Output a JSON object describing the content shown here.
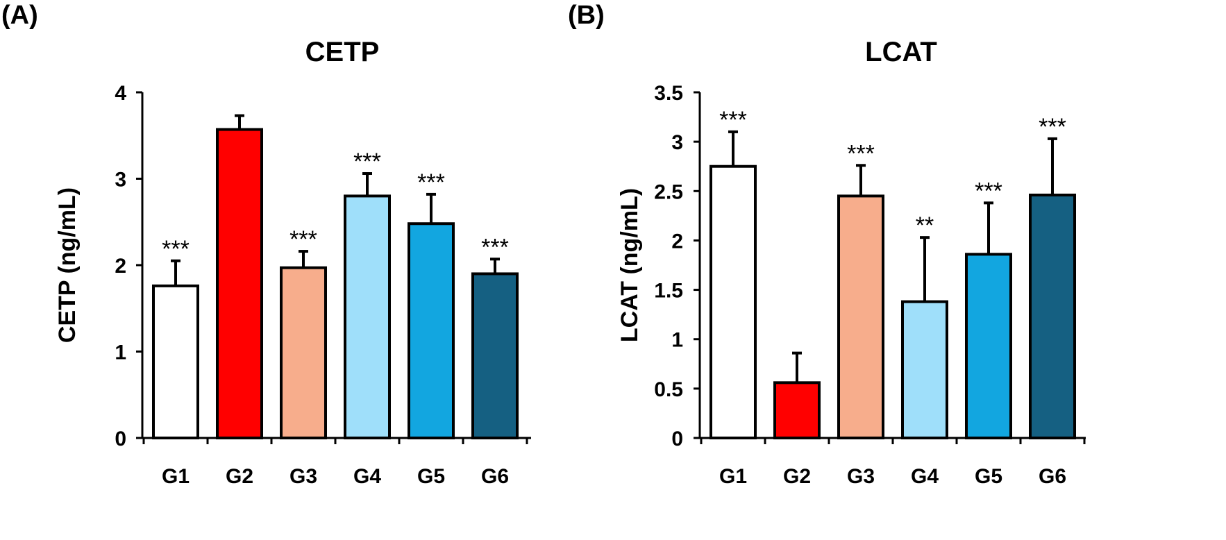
{
  "chart_data": [
    {
      "type": "bar",
      "panel_label": "(A)",
      "title": "CETP",
      "xlabel": "",
      "ylabel": "CETP (ng/mL)",
      "categories": [
        "G1",
        "G2",
        "G3",
        "G4",
        "G5",
        "G6"
      ],
      "values": [
        1.76,
        3.57,
        1.97,
        2.8,
        2.48,
        1.9
      ],
      "errors": [
        0.29,
        0.16,
        0.19,
        0.26,
        0.34,
        0.17
      ],
      "significance": [
        "***",
        "",
        "***",
        "***",
        "***",
        "***"
      ],
      "colors": [
        "#ffffff",
        "#ff0000",
        "#f7ad8c",
        "#9fdffa",
        "#12a6e0",
        "#156082"
      ],
      "ylim": [
        0,
        4
      ],
      "yticks": [
        0,
        1,
        2,
        3,
        4
      ],
      "ytick_labels": [
        "0",
        "1",
        "2",
        "3",
        "4"
      ],
      "grid": false
    },
    {
      "type": "bar",
      "panel_label": "(B)",
      "title": "LCAT",
      "xlabel": "",
      "ylabel": "LCAT (ng/mL)",
      "categories": [
        "G1",
        "G2",
        "G3",
        "G4",
        "G5",
        "G6"
      ],
      "values": [
        2.75,
        0.56,
        2.45,
        1.38,
        1.86,
        2.46
      ],
      "errors": [
        0.35,
        0.3,
        0.31,
        0.65,
        0.52,
        0.57
      ],
      "significance": [
        "***",
        "",
        "***",
        "**",
        "***",
        "***"
      ],
      "colors": [
        "#ffffff",
        "#ff0000",
        "#f7ad8c",
        "#9fdffa",
        "#12a6e0",
        "#156082"
      ],
      "ylim": [
        0,
        3.5
      ],
      "yticks": [
        0,
        0.5,
        1,
        1.5,
        2,
        2.5,
        3,
        3.5
      ],
      "ytick_labels": [
        "0",
        "0.5",
        "1",
        "1.5",
        "2",
        "2.5",
        "3",
        "3.5"
      ],
      "grid": false
    }
  ]
}
